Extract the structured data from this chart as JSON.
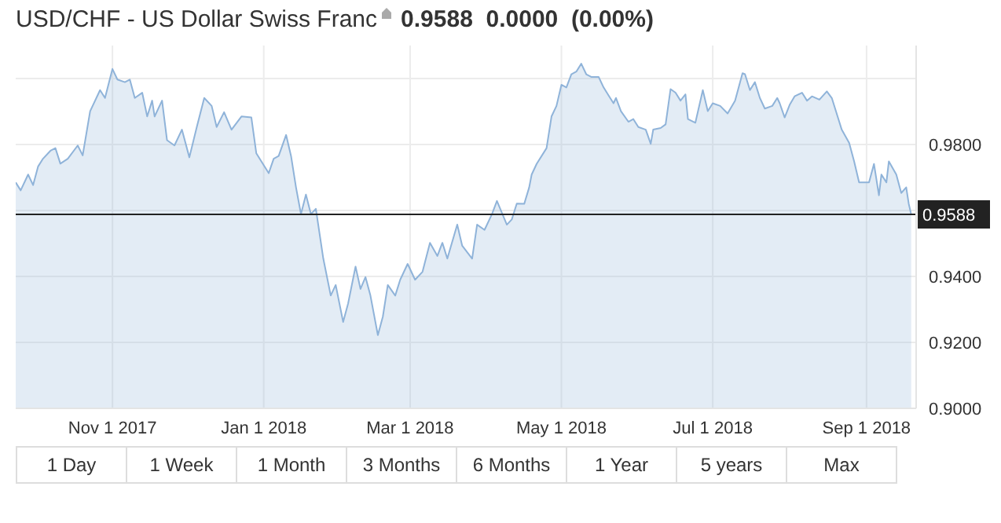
{
  "chart_data": {
    "type": "area",
    "title": "USD/CHF - US Dollar Swiss Franc",
    "subtitle": "0.9588  0.0000  (0.00%)",
    "x": [
      "2017-09-23",
      "2017-09-25",
      "2017-09-28",
      "2017-09-30",
      "2017-10-02",
      "2017-10-04",
      "2017-10-07",
      "2017-10-09",
      "2017-10-11",
      "2017-10-14",
      "2017-10-18",
      "2017-10-20",
      "2017-10-23",
      "2017-10-27",
      "2017-10-29",
      "2017-11-01",
      "2017-11-03",
      "2017-11-06",
      "2017-11-08",
      "2017-11-10",
      "2017-11-13",
      "2017-11-15",
      "2017-11-17",
      "2017-11-18",
      "2017-11-21",
      "2017-11-23",
      "2017-11-26",
      "2017-11-29",
      "2017-12-02",
      "2017-12-05",
      "2017-12-08",
      "2017-12-11",
      "2017-12-13",
      "2017-12-16",
      "2017-12-19",
      "2017-12-23",
      "2017-12-27",
      "2017-12-29",
      "2018-01-03",
      "2018-01-05",
      "2018-01-07",
      "2018-01-10",
      "2018-01-12",
      "2018-01-14",
      "2018-01-16",
      "2018-01-18",
      "2018-01-20",
      "2018-01-22",
      "2018-01-25",
      "2018-01-28",
      "2018-01-30",
      "2018-02-02",
      "2018-02-04",
      "2018-02-07",
      "2018-02-09",
      "2018-02-11",
      "2018-02-13",
      "2018-02-16",
      "2018-02-18",
      "2018-02-20",
      "2018-02-23",
      "2018-02-25",
      "2018-02-28",
      "2018-03-03",
      "2018-03-06",
      "2018-03-09",
      "2018-03-12",
      "2018-03-14",
      "2018-03-16",
      "2018-03-20",
      "2018-03-22",
      "2018-03-26",
      "2018-03-28",
      "2018-03-31",
      "2018-04-03",
      "2018-04-05",
      "2018-04-09",
      "2018-04-11",
      "2018-04-12",
      "2018-04-13",
      "2018-04-16",
      "2018-04-18",
      "2018-04-19",
      "2018-04-21",
      "2018-04-25",
      "2018-04-27",
      "2018-04-29",
      "2018-05-01",
      "2018-05-03",
      "2018-05-05",
      "2018-05-07",
      "2018-05-09",
      "2018-05-11",
      "2018-05-13",
      "2018-05-16",
      "2018-05-18",
      "2018-05-20",
      "2018-05-22",
      "2018-05-23",
      "2018-05-25",
      "2018-05-28",
      "2018-05-30",
      "2018-06-01",
      "2018-06-04",
      "2018-06-06",
      "2018-06-07",
      "2018-06-10",
      "2018-06-12",
      "2018-06-14",
      "2018-06-16",
      "2018-06-18",
      "2018-06-20",
      "2018-06-21",
      "2018-06-24",
      "2018-06-27",
      "2018-06-29",
      "2018-07-01",
      "2018-07-04",
      "2018-07-07",
      "2018-07-10",
      "2018-07-13",
      "2018-07-14",
      "2018-07-16",
      "2018-07-18",
      "2018-07-20",
      "2018-07-22",
      "2018-07-25",
      "2018-07-27",
      "2018-07-28",
      "2018-07-30",
      "2018-08-01",
      "2018-08-03",
      "2018-08-06",
      "2018-08-08",
      "2018-08-10",
      "2018-08-13",
      "2018-08-16",
      "2018-08-18",
      "2018-08-21",
      "2018-08-22",
      "2018-08-25",
      "2018-08-27",
      "2018-08-29",
      "2018-09-02",
      "2018-09-04",
      "2018-09-06",
      "2018-09-07",
      "2018-09-09",
      "2018-09-10",
      "2018-09-13",
      "2018-09-15",
      "2018-09-17",
      "2018-09-18",
      "2018-09-19"
    ],
    "series": [
      {
        "color": "#8fb3d9",
        "values": [
          0.9685,
          0.9661,
          0.9709,
          0.9677,
          0.9733,
          0.9757,
          0.9781,
          0.9789,
          0.9742,
          0.9757,
          0.9797,
          0.9767,
          0.9901,
          0.9965,
          0.9941,
          1.0029,
          0.9997,
          0.9989,
          0.9997,
          0.9941,
          0.9957,
          0.9885,
          0.9933,
          0.9885,
          0.9933,
          0.9813,
          0.9797,
          0.9845,
          0.9761,
          0.9853,
          0.9941,
          0.9917,
          0.9853,
          0.9898,
          0.9845,
          0.9885,
          0.9882,
          0.9773,
          0.9713,
          0.9757,
          0.9765,
          0.9829,
          0.9765,
          0.967,
          0.9589,
          0.9648,
          0.9589,
          0.9605,
          0.9454,
          0.9342,
          0.9374,
          0.9262,
          0.9318,
          0.943,
          0.9362,
          0.9398,
          0.9342,
          0.9222,
          0.9278,
          0.9374,
          0.9342,
          0.939,
          0.9438,
          0.939,
          0.9414,
          0.9502,
          0.9462,
          0.9502,
          0.9454,
          0.9557,
          0.9493,
          0.9454,
          0.9557,
          0.9541,
          0.9589,
          0.9629,
          0.9557,
          0.9573,
          0.9597,
          0.9621,
          0.962,
          0.967,
          0.9709,
          0.9741,
          0.9789,
          0.9885,
          0.9917,
          0.9981,
          0.9973,
          1.0013,
          1.0021,
          1.0045,
          1.0013,
          1.0005,
          1.0005,
          0.9973,
          0.9949,
          0.9925,
          0.9941,
          0.9901,
          0.9869,
          0.9877,
          0.9853,
          0.9845,
          0.9802,
          0.9845,
          0.985,
          0.9861,
          0.9968,
          0.9957,
          0.9933,
          0.9952,
          0.9877,
          0.9866,
          0.9965,
          0.9901,
          0.9925,
          0.9917,
          0.9894,
          0.9933,
          1.0016,
          1.0013,
          0.9965,
          0.9989,
          0.9941,
          0.9909,
          0.9917,
          0.9941,
          0.9925,
          0.9882,
          0.992,
          0.9946,
          0.9957,
          0.9933,
          0.9946,
          0.9936,
          0.9961,
          0.9941,
          0.9869,
          0.9845,
          0.9805,
          0.9749,
          0.9685,
          0.9685,
          0.9741,
          0.9646,
          0.9709,
          0.9685,
          0.9749,
          0.9709,
          0.9653,
          0.967,
          0.9621,
          0.9588
        ]
      }
    ],
    "xlim": [
      "2017-09-23",
      "2018-09-21"
    ],
    "xticks": [
      {
        "value": "2017-11-01",
        "label": "Nov 1 2017"
      },
      {
        "value": "2018-01-01",
        "label": "Jan 1 2018"
      },
      {
        "value": "2018-03-01",
        "label": "Mar 1 2018"
      },
      {
        "value": "2018-05-01",
        "label": "May 1 2018"
      },
      {
        "value": "2018-07-01",
        "label": "Jul 1 2018"
      },
      {
        "value": "2018-09-01",
        "label": "Sep 1 2018"
      }
    ],
    "ylim": [
      0.9,
      1.01
    ],
    "yticks": [
      {
        "value": 0.9,
        "label": "0.9000"
      },
      {
        "value": 0.92,
        "label": "0.9200"
      },
      {
        "value": 0.94,
        "label": "0.9400"
      },
      {
        "value": 0.96,
        "label": null
      },
      {
        "value": 0.98,
        "label": "0.9800"
      },
      {
        "value": 1.0,
        "label": null
      }
    ],
    "ref_lines": [
      {
        "axis": "y",
        "value": 0.9588,
        "label": "0.9588",
        "color": "#222222"
      }
    ],
    "grid": true,
    "marker": "none",
    "line_style": "solid",
    "annotations": [
      "1 Day",
      "1 Week",
      "1 Month",
      "3 Months",
      "6 Months",
      "1 Year",
      "5 years",
      "Max"
    ]
  }
}
